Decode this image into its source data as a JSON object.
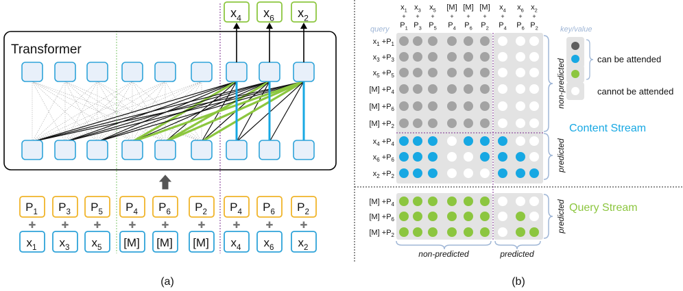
{
  "panel_a": {
    "caption": "(a)",
    "transformer_title": "Transformer",
    "outputs": [
      {
        "base": "x",
        "sub": "4"
      },
      {
        "base": "x",
        "sub": "6"
      },
      {
        "base": "x",
        "sub": "2"
      }
    ],
    "positions": [
      {
        "base": "P",
        "sub": "1"
      },
      {
        "base": "P",
        "sub": "3"
      },
      {
        "base": "P",
        "sub": "5"
      },
      {
        "base": "P",
        "sub": "4"
      },
      {
        "base": "P",
        "sub": "6"
      },
      {
        "base": "P",
        "sub": "2"
      },
      {
        "base": "P",
        "sub": "4"
      },
      {
        "base": "P",
        "sub": "6"
      },
      {
        "base": "P",
        "sub": "2"
      }
    ],
    "tokens": [
      {
        "base": "x",
        "sub": "1"
      },
      {
        "base": "x",
        "sub": "3"
      },
      {
        "base": "x",
        "sub": "5"
      },
      {
        "base": "[M]",
        "sub": ""
      },
      {
        "base": "[M]",
        "sub": ""
      },
      {
        "base": "[M]",
        "sub": ""
      },
      {
        "base": "x",
        "sub": "4"
      },
      {
        "base": "x",
        "sub": "6"
      },
      {
        "base": "x",
        "sub": "2"
      }
    ],
    "plus_symbol": "✚"
  },
  "panel_b": {
    "caption": "(b)",
    "query_label": "query",
    "keyvalue_label": "key/value",
    "columns": [
      {
        "top": "x",
        "top_sub": "1",
        "bot": "P",
        "bot_sub": "1"
      },
      {
        "top": "x",
        "top_sub": "3",
        "bot": "P",
        "bot_sub": "3"
      },
      {
        "top": "x",
        "top_sub": "5",
        "bot": "P",
        "bot_sub": "5"
      },
      {
        "top": "[M]",
        "top_sub": "",
        "bot": "P",
        "bot_sub": "4"
      },
      {
        "top": "[M]",
        "top_sub": "",
        "bot": "P",
        "bot_sub": "6"
      },
      {
        "top": "[M]",
        "top_sub": "",
        "bot": "P",
        "bot_sub": "2"
      },
      {
        "top": "x",
        "top_sub": "4",
        "bot": "P",
        "bot_sub": "4"
      },
      {
        "top": "x",
        "top_sub": "6",
        "bot": "P",
        "bot_sub": "6"
      },
      {
        "top": "x",
        "top_sub": "2",
        "bot": "P",
        "bot_sub": "2"
      }
    ],
    "content_rows": [
      {
        "a": "x",
        "a_sub": "1",
        "b": "P",
        "b_sub": "1"
      },
      {
        "a": "x",
        "a_sub": "3",
        "b": "P",
        "b_sub": "3"
      },
      {
        "a": "x",
        "a_sub": "5",
        "b": "P",
        "b_sub": "5"
      },
      {
        "a": "[M]",
        "a_sub": "",
        "b": "P",
        "b_sub": "4"
      },
      {
        "a": "[M]",
        "a_sub": "",
        "b": "P",
        "b_sub": "6"
      },
      {
        "a": "[M]",
        "a_sub": "",
        "b": "P",
        "b_sub": "2"
      },
      {
        "a": "x",
        "a_sub": "4",
        "b": "P",
        "b_sub": "4"
      },
      {
        "a": "x",
        "a_sub": "6",
        "b": "P",
        "b_sub": "6"
      },
      {
        "a": "x",
        "a_sub": "2",
        "b": "P",
        "b_sub": "2"
      }
    ],
    "query_rows": [
      {
        "a": "[M]",
        "a_sub": "",
        "b": "P",
        "b_sub": "4"
      },
      {
        "a": "[M]",
        "a_sub": "",
        "b": "P",
        "b_sub": "6"
      },
      {
        "a": "[M]",
        "a_sub": "",
        "b": "P",
        "b_sub": "2"
      }
    ],
    "content_matrix": [
      "gggggg...",
      "gggggg...",
      "gggggg...",
      "gggggg...",
      "gggggg...",
      "gggggg...",
      "bbb.bbb..",
      "bbb..bbb.",
      "bbb...bbb"
    ],
    "query_matrix": [
      "gggggg...",
      "gggggg.g.",
      "gggggg.gg"
    ],
    "legend": {
      "can_attend": "can be attended",
      "cannot_attend": "cannot be attended"
    },
    "content_stream_label": "Content Stream",
    "query_stream_label": "Query Stream",
    "non_predicted_label": "non-predicted",
    "predicted_label": "predicted",
    "colors": {
      "gray": "#a3a3a3",
      "dark_gray": "#5f5f5f",
      "blue": "#17a8e3",
      "green": "#8cc63f",
      "node_fill": "#e8f0fa",
      "node_border": "#2ea3d9",
      "orange": "#f0b429",
      "purple": "#7a2b8e"
    }
  }
}
